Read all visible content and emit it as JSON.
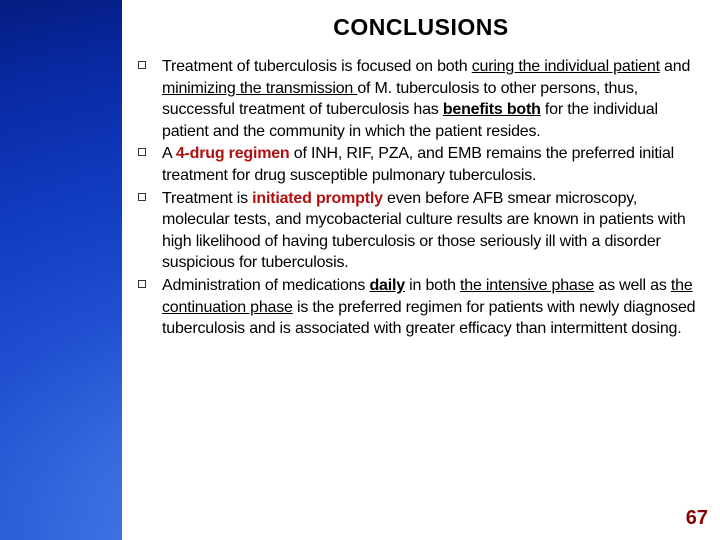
{
  "colors": {
    "bg_outer": "#041a7a",
    "bg_inner": "#5a8ff5",
    "content_bg": "#ffffff",
    "title_color": "#000000",
    "text_color": "#000000",
    "accent_red": "#b01010",
    "pagenum_color": "#8b0000",
    "bullet_border": "#333333"
  },
  "title": {
    "text": "CONCLUSIONS",
    "fontsize": 23,
    "fontweight": "bold"
  },
  "body_fontsize": 16,
  "bullets": [
    {
      "segments": [
        {
          "t": "Treatment of tuberculosis is focused on both "
        },
        {
          "t": "curing the individual patient",
          "cls": "u"
        },
        {
          "t": " and "
        },
        {
          "t": "minimizing the transmission ",
          "cls": "u"
        },
        {
          "t": "of M. tuberculosis to other persons, thus, successful treatment of tuberculosis has "
        },
        {
          "t": "benefits both",
          "cls": "u b"
        },
        {
          "t": " for the individual patient and the community in which the patient resides."
        }
      ]
    },
    {
      "segments": [
        {
          "t": "A "
        },
        {
          "t": "4-drug regimen",
          "cls": "red"
        },
        {
          "t": " of INH, RIF, PZA, and EMB remains the preferred initial treatment for drug susceptible pulmonary tuberculosis."
        }
      ]
    },
    {
      "segments": [
        {
          "t": "Treatment is "
        },
        {
          "t": "initiated promptly",
          "cls": "red"
        },
        {
          "t": " even before AFB smear microscopy, molecular tests, and mycobacterial culture results are known in patients with high likelihood of having tuberculosis or those seriously ill with a disorder suspicious for tuberculosis."
        }
      ]
    },
    {
      "segments": [
        {
          "t": "Administration of medications "
        },
        {
          "t": "daily",
          "cls": "u b"
        },
        {
          "t": " in both "
        },
        {
          "t": "the intensive phase",
          "cls": "u"
        },
        {
          "t": " as well as "
        },
        {
          "t": "the continuation phase",
          "cls": "u"
        },
        {
          "t": " is the preferred regimen for patients with newly diagnosed tuberculosis and is associated with greater efficacy than intermittent dosing."
        }
      ]
    }
  ],
  "page_number": {
    "text": "67",
    "fontsize": 20
  }
}
